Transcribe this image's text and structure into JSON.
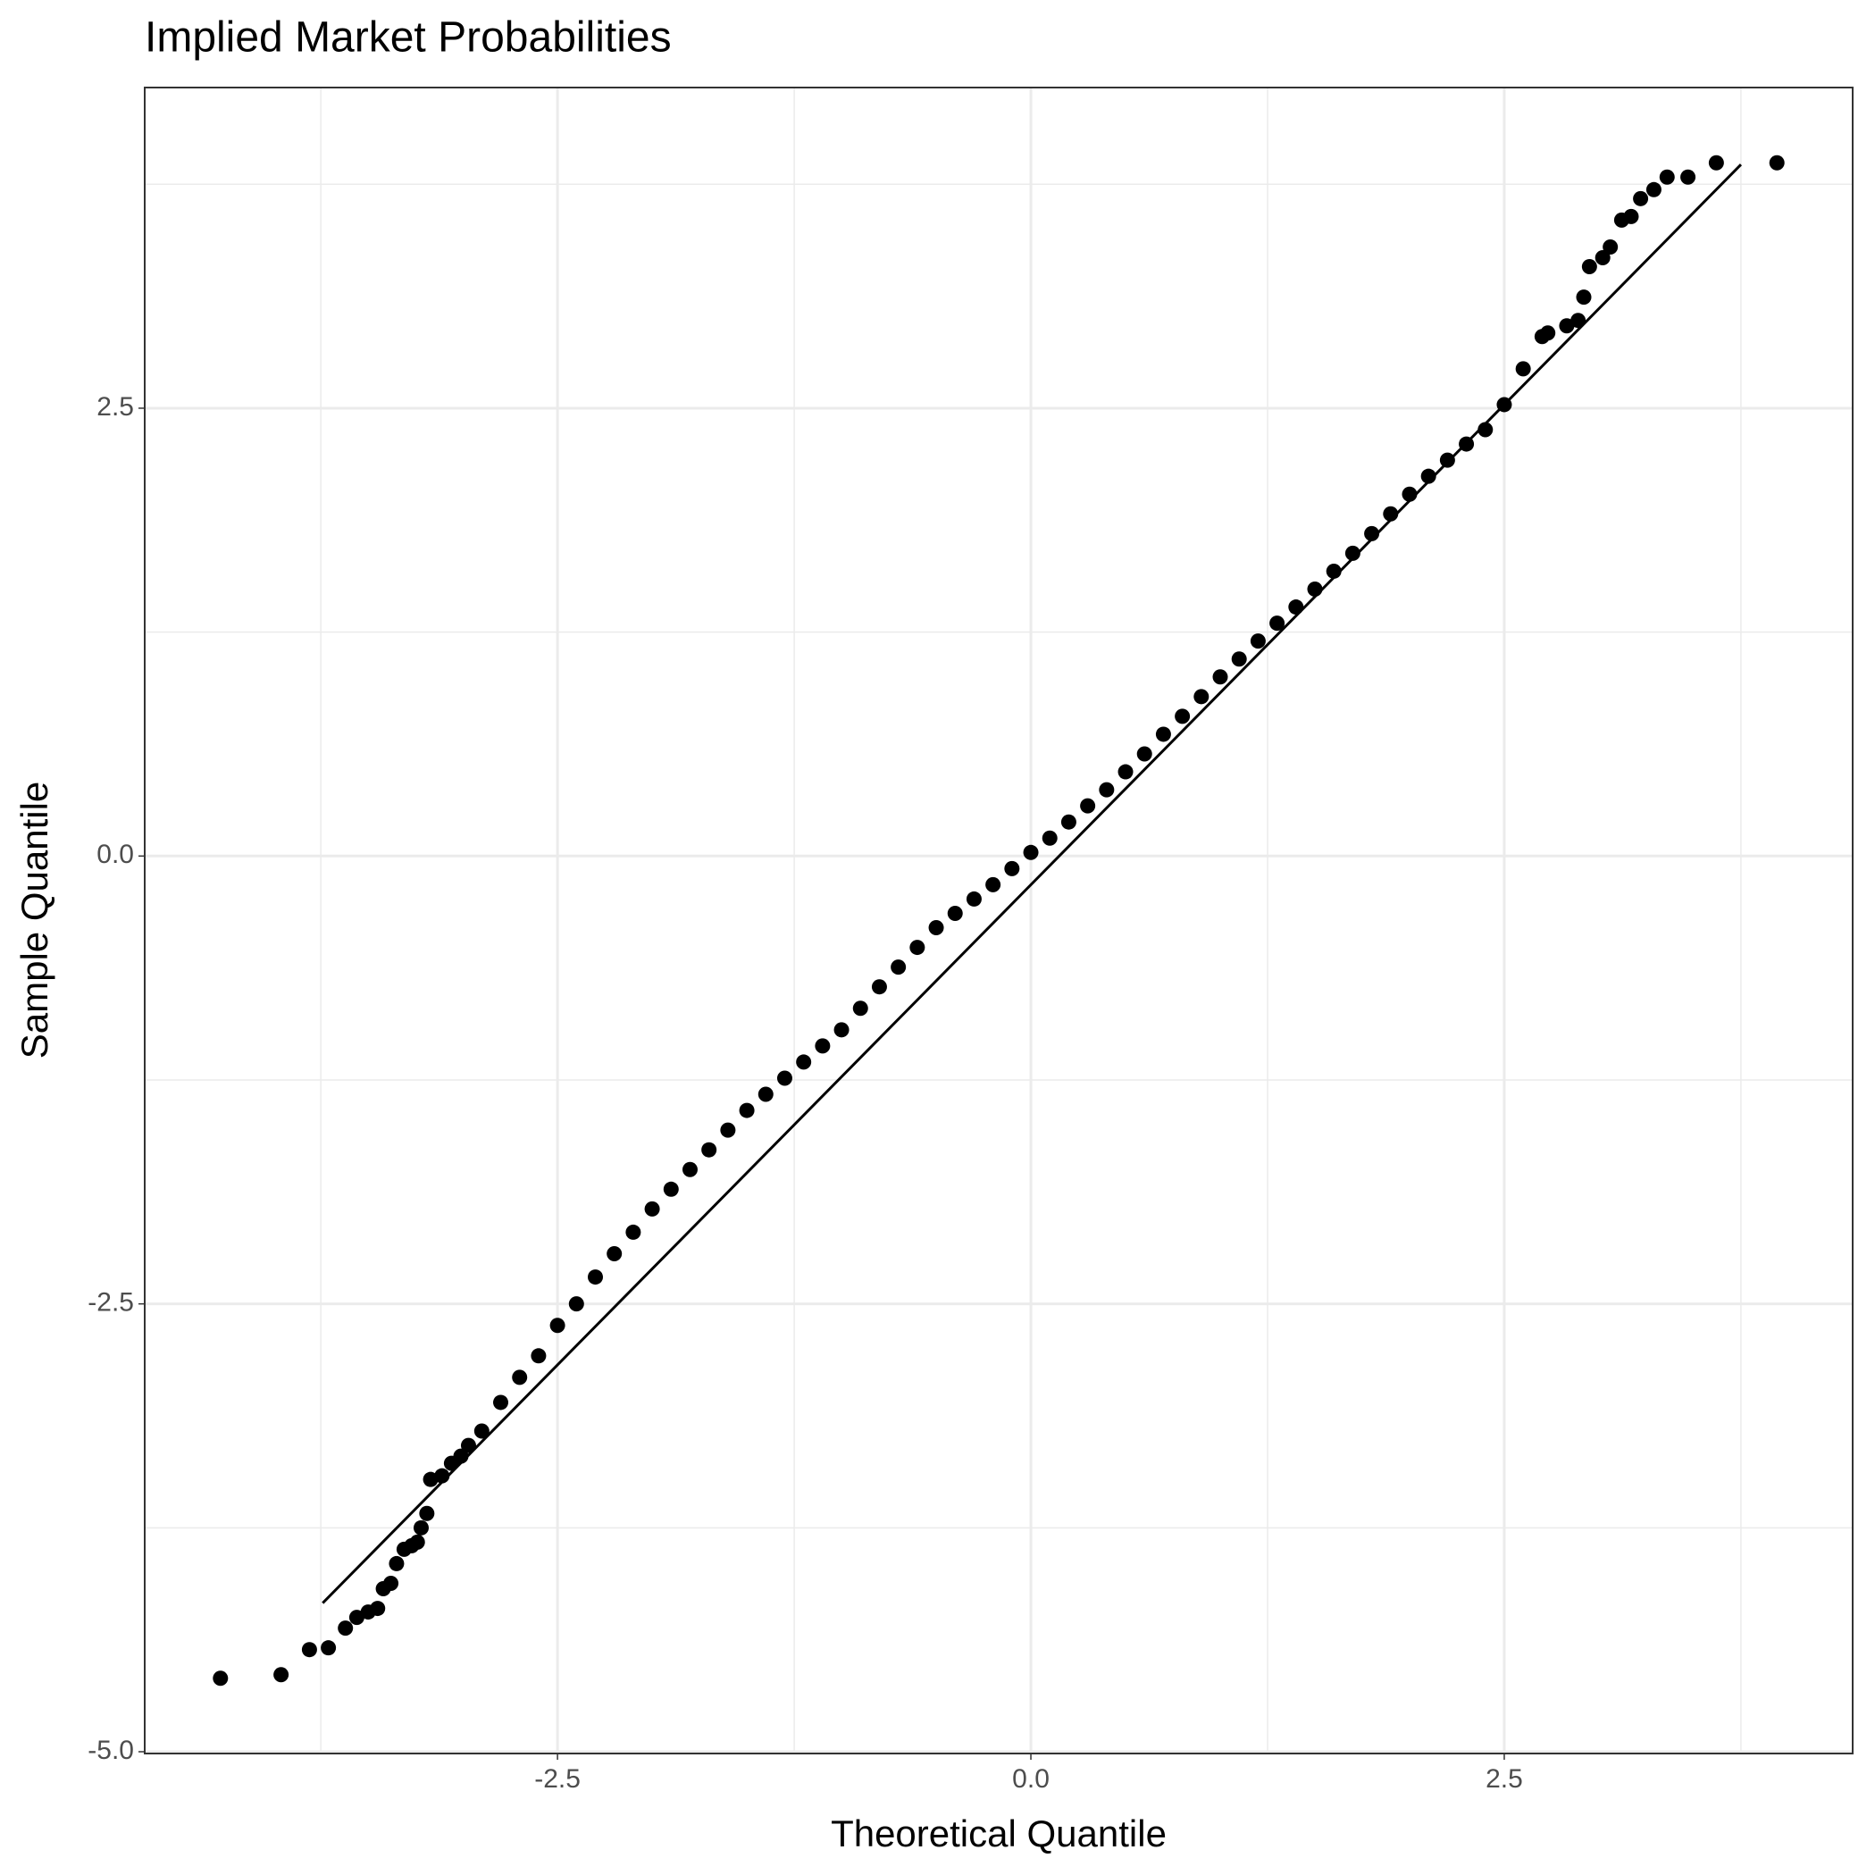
{
  "chart_data": {
    "type": "scatter",
    "title": "Implied Market Probabilities",
    "x_label": "Theoretical Quantile",
    "y_label": "Sample Quantile",
    "xlim": [
      -4.68,
      4.34
    ],
    "ylim": [
      -5.01,
      4.29
    ],
    "xticks": [
      -2.5,
      {
        "value": 0,
        "label": "0.0"
      },
      2.5
    ],
    "yticks": [
      {
        "value": -5,
        "label": "-5.0"
      },
      -2.5,
      {
        "value": 0,
        "label": "0.0"
      },
      2.5
    ],
    "grid": true,
    "color": "#000000",
    "x": [
      -4.28,
      -3.96,
      -3.81,
      -3.71,
      -3.62,
      -3.56,
      -3.5,
      -3.45,
      -3.42,
      -3.38,
      -3.35,
      -3.31,
      -3.27,
      -3.24,
      -3.22,
      -3.19,
      -3.17,
      -3.11,
      -3.06,
      -3.01,
      -2.97,
      -2.9,
      -2.8,
      -2.7,
      -2.6,
      -2.5,
      -2.4,
      -2.3,
      -2.2,
      -2.1,
      -2.0,
      -1.9,
      -1.8,
      -1.7,
      -1.6,
      -1.5,
      -1.4,
      -1.3,
      -1.2,
      -1.1,
      -1.0,
      -0.9,
      -0.8,
      -0.7,
      -0.6,
      -0.5,
      -0.4,
      -0.3,
      -0.2,
      -0.1,
      0.0,
      0.1,
      0.2,
      0.3,
      0.4,
      0.5,
      0.6,
      0.7,
      0.8,
      0.9,
      1.0,
      1.1,
      1.2,
      1.3,
      1.4,
      1.5,
      1.6,
      1.7,
      1.8,
      1.9,
      2.0,
      2.1,
      2.2,
      2.3,
      2.4,
      2.5,
      2.6,
      2.7,
      2.73,
      2.83,
      2.89,
      2.92,
      2.95,
      3.02,
      3.06,
      3.12,
      3.17,
      3.22,
      3.29,
      3.36,
      3.47,
      3.62,
      3.94
    ],
    "values": [
      -4.59,
      -4.57,
      -4.43,
      -4.42,
      -4.31,
      -4.25,
      -4.22,
      -4.2,
      -4.09,
      -4.06,
      -3.95,
      -3.87,
      -3.85,
      -3.83,
      -3.75,
      -3.67,
      -3.48,
      -3.46,
      -3.39,
      -3.35,
      -3.29,
      -3.21,
      -3.05,
      -2.91,
      -2.79,
      -2.62,
      -2.5,
      -2.35,
      -2.22,
      -2.1,
      -1.97,
      -1.86,
      -1.75,
      -1.64,
      -1.53,
      -1.42,
      -1.33,
      -1.24,
      -1.15,
      -1.06,
      -0.97,
      -0.85,
      -0.73,
      -0.62,
      -0.51,
      -0.4,
      -0.32,
      -0.24,
      -0.16,
      -0.07,
      0.02,
      0.1,
      0.19,
      0.28,
      0.37,
      0.47,
      0.57,
      0.68,
      0.78,
      0.89,
      1.0,
      1.1,
      1.2,
      1.3,
      1.39,
      1.49,
      1.59,
      1.69,
      1.8,
      1.91,
      2.02,
      2.12,
      2.21,
      2.3,
      2.38,
      2.52,
      2.72,
      2.9,
      2.92,
      2.96,
      2.99,
      3.12,
      3.29,
      3.34,
      3.4,
      3.55,
      3.57,
      3.67,
      3.72,
      3.79,
      3.79,
      3.87,
      3.87
    ],
    "reference_line": {
      "x": [
        -3.74,
        3.75
      ],
      "values": [
        -4.17,
        3.86
      ]
    }
  }
}
